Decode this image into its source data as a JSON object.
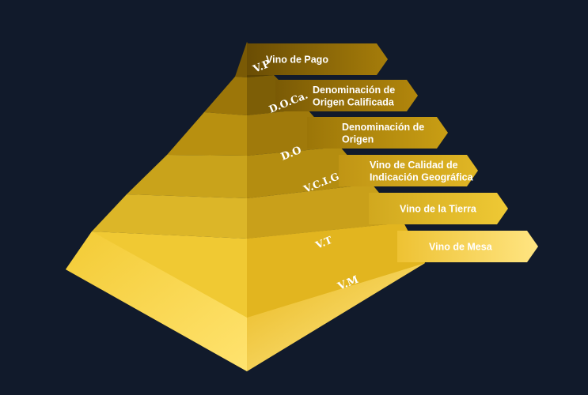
{
  "pyramid": {
    "levels": [
      {
        "abbr": "V.P",
        "label_lines": [
          "Vino de Pago"
        ],
        "left": "#7a5a05",
        "right": "#5c4302",
        "arrow": [
          "#6a4d04",
          "#a67d0a"
        ]
      },
      {
        "abbr": "D.O.Ca.",
        "label_lines": [
          "Denominación de",
          "Origen Calificada"
        ],
        "left": "#9c7609",
        "right": "#7d5e06",
        "arrow": [
          "#7a5a05",
          "#b3870c"
        ]
      },
      {
        "abbr": "D.O",
        "label_lines": [
          "Denominación de",
          "Origen"
        ],
        "left": "#b89010",
        "right": "#a07a0b",
        "arrow": [
          "#9c7608",
          "#c99e14"
        ]
      },
      {
        "abbr": "V.C.I.G",
        "label_lines": [
          "Vino de Calidad de",
          "Indicación Geográfica"
        ],
        "left": "#c9a31b",
        "right": "#b48d10",
        "arrow": [
          "#c09514",
          "#e0b625"
        ]
      },
      {
        "abbr": "V.T",
        "label_lines": [
          "Vino de la Tierra"
        ],
        "left": "#dcb628",
        "right": "#c9a01a",
        "arrow": [
          "#d1a81e",
          "#efc935"
        ]
      },
      {
        "abbr": "V.M",
        "label_lines": [
          "Vino de Mesa"
        ],
        "left": "#f0c933",
        "right": "#e6bb22",
        "arrow": [
          "#eec233",
          "#ffe582"
        ]
      }
    ]
  }
}
